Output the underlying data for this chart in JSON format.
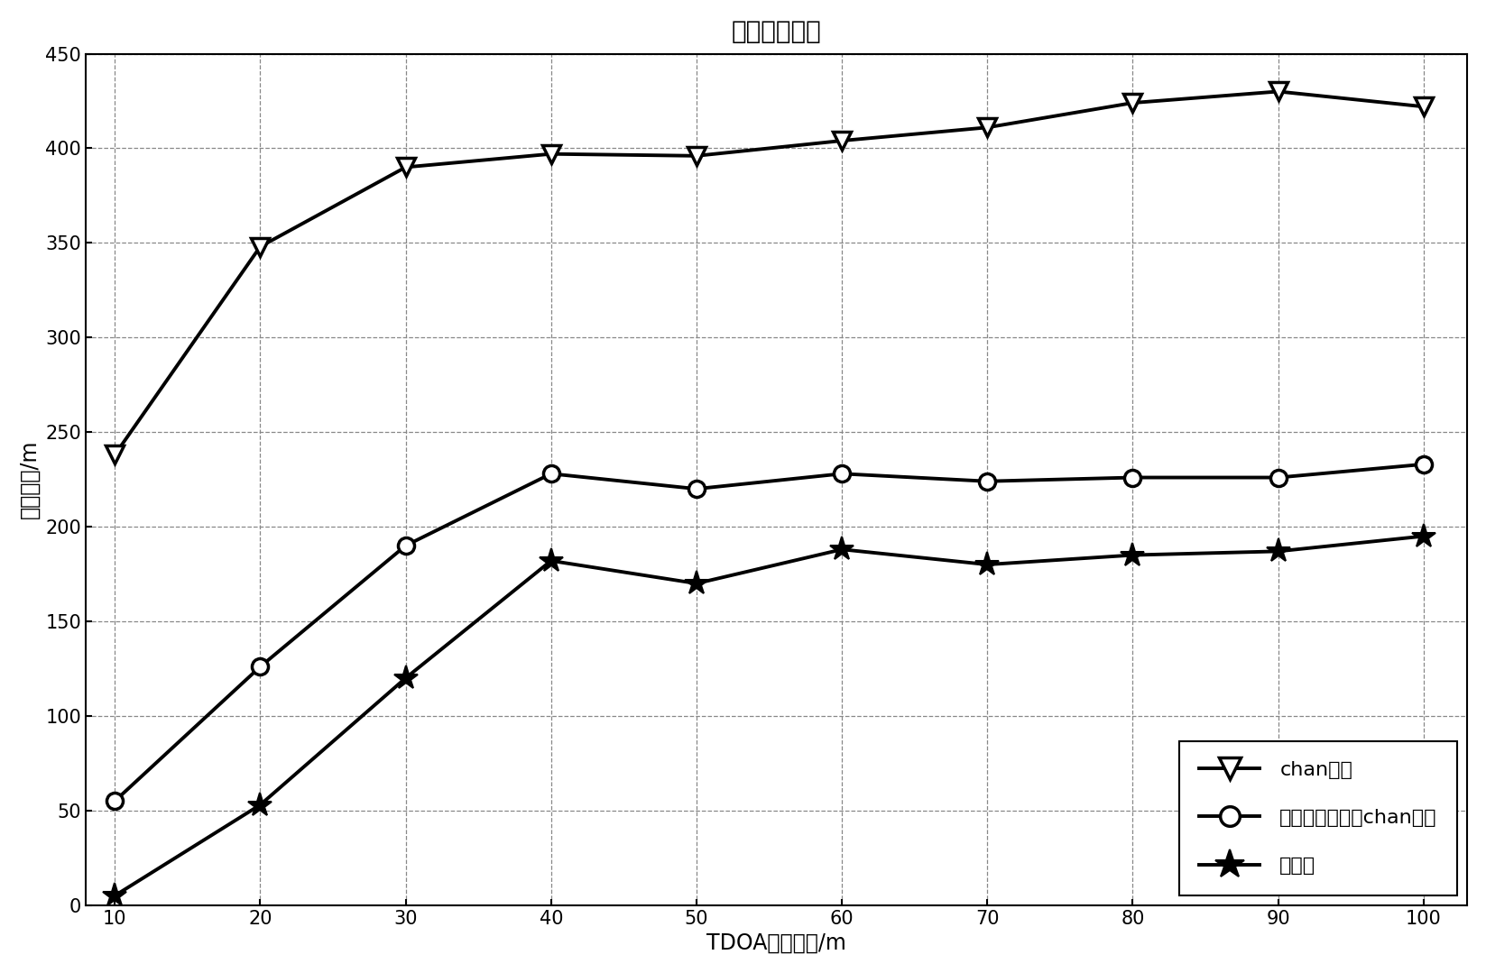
{
  "title": "定位性能比较",
  "xlabel": "TDOA测量误差/m",
  "ylabel": "定位误差/m",
  "x": [
    10,
    20,
    30,
    40,
    50,
    60,
    70,
    80,
    90,
    100
  ],
  "chan": [
    238,
    348,
    390,
    397,
    396,
    404,
    411,
    424,
    430,
    422
  ],
  "chan_threshold": [
    55,
    126,
    190,
    228,
    220,
    228,
    224,
    226,
    226,
    233
  ],
  "invention": [
    5,
    53,
    120,
    182,
    170,
    188,
    180,
    185,
    187,
    195
  ],
  "ylim": [
    0,
    450
  ],
  "yticks": [
    0,
    50,
    100,
    150,
    200,
    250,
    300,
    350,
    400,
    450
  ],
  "xticks": [
    10,
    20,
    30,
    40,
    50,
    60,
    70,
    80,
    90,
    100
  ],
  "line_color": "#000000",
  "bg_color": "#ffffff",
  "legend_label_0": "chan算法",
  "legend_label_1": "带有门限判决的chan算法",
  "legend_label_2": "本发明",
  "title_fontsize": 20,
  "label_fontsize": 17,
  "tick_fontsize": 15,
  "legend_fontsize": 16
}
